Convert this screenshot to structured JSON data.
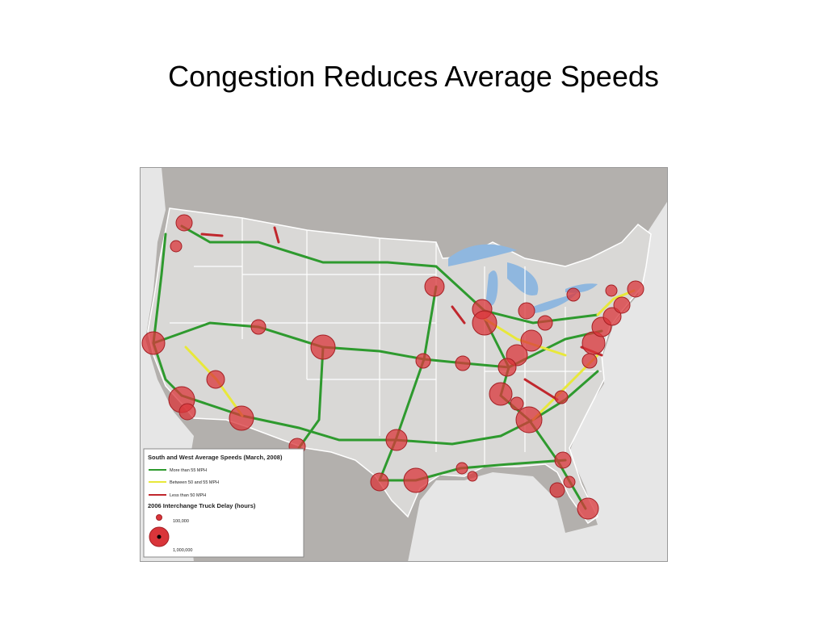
{
  "title": "Congestion Reduces Average Speeds",
  "legend": {
    "title": "South and West Average Speeds (March, 2008)",
    "speed_items": [
      "More than 55 MPH",
      "Between 50 and 55 MPH",
      "Less than 50 MPH"
    ],
    "delay_title": "2006 Interchange Truck Delay (hours)",
    "delay_items": [
      "100,000",
      "1,000,000"
    ]
  }
}
